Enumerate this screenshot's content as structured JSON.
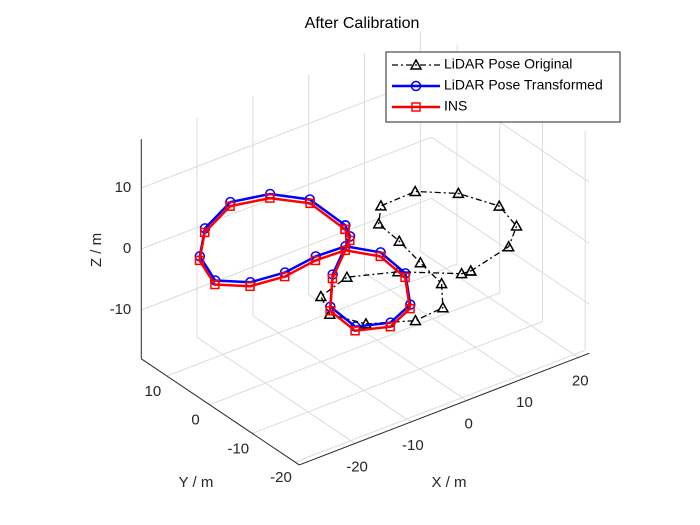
{
  "chart_data": {
    "type": "line3d",
    "title": "After Calibration",
    "xlabel": "X / m",
    "ylabel": "Y / m",
    "zlabel": "Z / m",
    "xlim": [
      -30,
      22
    ],
    "ylim": [
      -21,
      16
    ],
    "zlim": [
      -18,
      18
    ],
    "xticks": [
      -20,
      -10,
      0,
      10,
      20
    ],
    "yticks": [
      -20,
      -10,
      0,
      10
    ],
    "zticks": [
      -10,
      0,
      10
    ],
    "grid": true,
    "legend_position": "northeast",
    "series": [
      {
        "name": "LiDAR Pose Original",
        "color": "#000000",
        "marker": "triangle",
        "line_style": "dashdot",
        "x": [
          3.8,
          11.2,
          15.6,
          17.0,
          14.5,
          9.9,
          4.6,
          1.3,
          0.7,
          0.5,
          0.4,
          -2.5,
          -7.8,
          -14.0,
          -16.5,
          -14.5,
          -9.3,
          -3.6,
          2.3,
          3.8
        ],
        "y": [
          -17.0,
          -16.2,
          -12.3,
          -6.4,
          -0.1,
          4.0,
          5.1,
          1.3,
          -4.3,
          -9.5,
          -14.6,
          -18.7,
          -19.2,
          -15.7,
          -10.5,
          -5.8,
          -5.1,
          -9.6,
          -16.8,
          -17.0
        ],
        "z": [
          0,
          1,
          1,
          1,
          1,
          1,
          0,
          0,
          0,
          -1,
          -2,
          -3,
          -3,
          -3,
          -3,
          -3,
          -2,
          -1,
          0,
          0
        ]
      },
      {
        "name": "LiDAR Pose Transformed",
        "color": "#0000ff",
        "marker": "circle",
        "line_style": "solid",
        "x": [
          -4.3,
          -5.0,
          -8.6,
          -14.5,
          -20.8,
          -25.1,
          -26.4,
          -22.7,
          -17.1,
          -11.9,
          -6.8,
          -2.8,
          -2.5,
          -6.2,
          -11.5,
          -16.2,
          -16.7,
          -12.0,
          -4.6,
          -4.3
        ],
        "y": [
          1.8,
          9.2,
          13.8,
          15.4,
          13.1,
          8.7,
          3.4,
          0.0,
          -0.8,
          -1.2,
          -1.5,
          -4.5,
          -9.9,
          -15.9,
          -18.2,
          -16.1,
          -10.9,
          -5.3,
          0.3,
          1.8
        ],
        "z": [
          1.5,
          2.5,
          2.5,
          2.5,
          1.5,
          0.5,
          -0.5,
          -0.5,
          -0.5,
          0.5,
          0.5,
          -0.5,
          -1.5,
          -2.5,
          -2.5,
          -2.5,
          -1.5,
          -0.5,
          0.5,
          1.5
        ]
      },
      {
        "name": "INS",
        "color": "#ff0000",
        "marker": "square",
        "line_style": "solid",
        "x": [
          -4.5,
          -5.1,
          -8.8,
          -14.7,
          -21.0,
          -25.3,
          -26.6,
          -22.9,
          -17.3,
          -12.1,
          -7.0,
          -3.0,
          -2.7,
          -6.4,
          -11.7,
          -16.4,
          -16.9,
          -12.2,
          -4.8,
          -4.5
        ],
        "y": [
          1.6,
          9.0,
          13.6,
          15.2,
          12.9,
          8.5,
          3.2,
          -0.2,
          -1.0,
          -1.4,
          -1.7,
          -4.7,
          -10.1,
          -16.1,
          -18.4,
          -16.3,
          -11.1,
          -5.5,
          0.1,
          1.6
        ],
        "z": [
          1,
          2,
          2,
          2,
          1,
          0,
          -1,
          -1,
          -1,
          0,
          0,
          -1,
          -2,
          -3,
          -3,
          -3,
          -2,
          -1,
          0,
          1
        ]
      }
    ]
  }
}
